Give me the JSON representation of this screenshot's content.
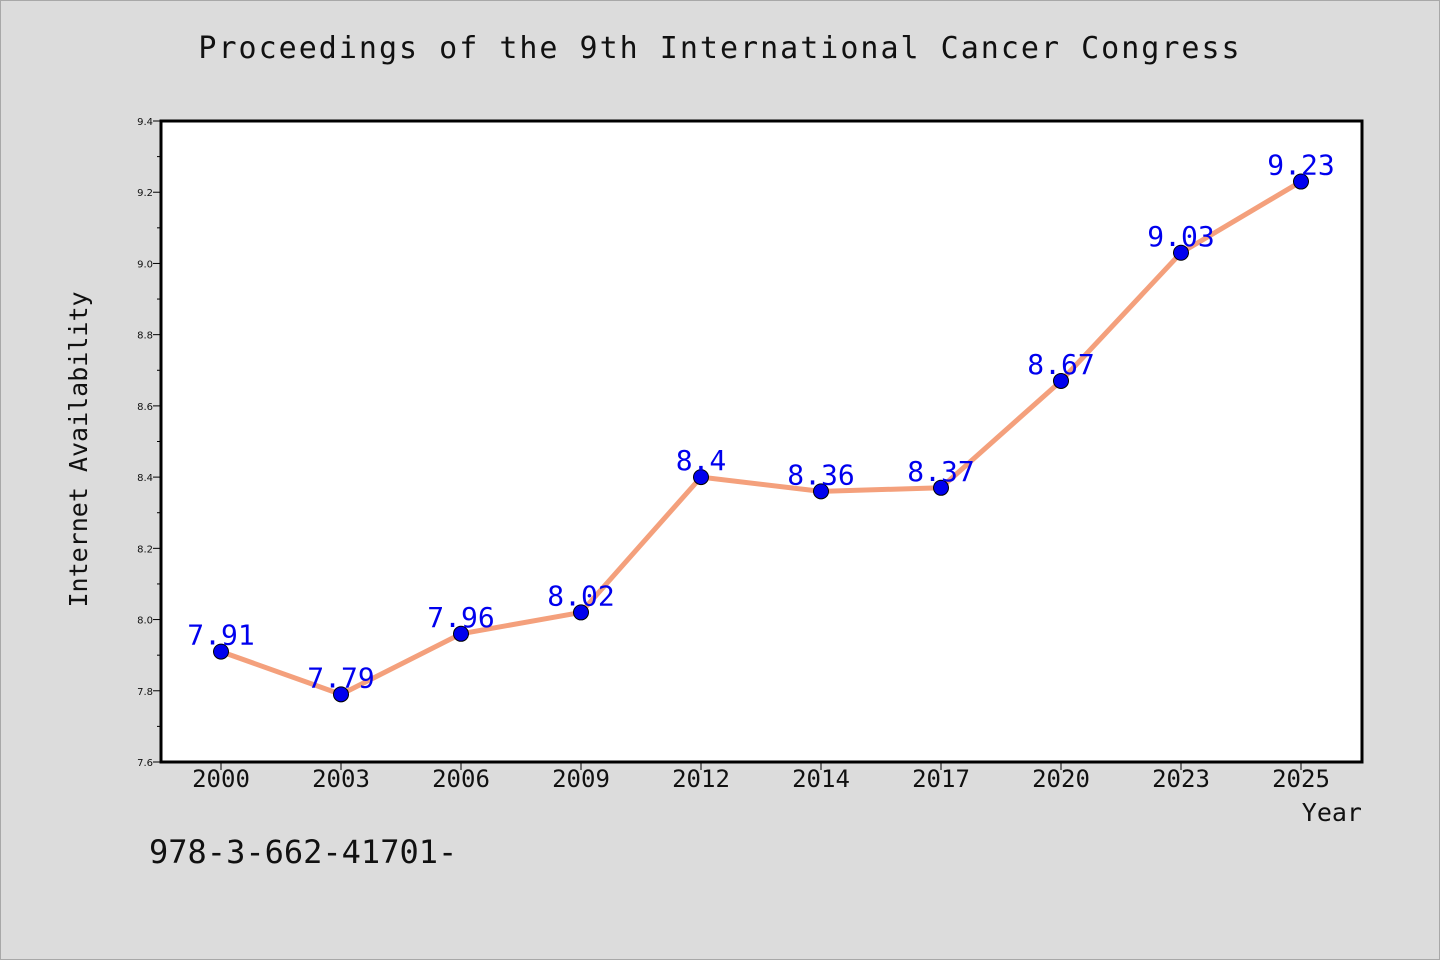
{
  "chart_data": {
    "type": "line",
    "title": "Proceedings of the 9th International Cancer Congress",
    "xlabel": "Year",
    "ylabel": "Internet Availability",
    "categories": [
      "2000",
      "2003",
      "2006",
      "2009",
      "2012",
      "2014",
      "2017",
      "2020",
      "2023",
      "2025"
    ],
    "series": [
      {
        "values": [
          7.91,
          7.79,
          7.96,
          8.02,
          8.4,
          8.36,
          8.37,
          8.67,
          9.03,
          9.23
        ],
        "data_labels": [
          "7.91",
          "7.79",
          "7.96",
          "8.02",
          "8.4",
          "8.36",
          "8.37",
          "8.67",
          "9.03",
          "9.23"
        ],
        "line_color": "#f4a07c",
        "marker_color": "#0000ee"
      }
    ],
    "ylim": [
      7.6,
      9.4
    ],
    "yticks": [
      7.6,
      7.8,
      8.0,
      8.2,
      8.4,
      8.6,
      8.8,
      9.0,
      9.2,
      9.4
    ],
    "ytick_labels": [
      "7.6",
      "7.8",
      "8.0",
      "8.2",
      "8.4",
      "8.6",
      "8.8",
      "9.0",
      "9.2",
      "9.4"
    ],
    "grid": false,
    "legend": "none",
    "label_color": "#0000ee"
  },
  "annotation": {
    "isbn_text": "978-3-662-41701-"
  },
  "colors": {
    "background": "#dcdcdc",
    "plot_area": "#ffffff"
  }
}
